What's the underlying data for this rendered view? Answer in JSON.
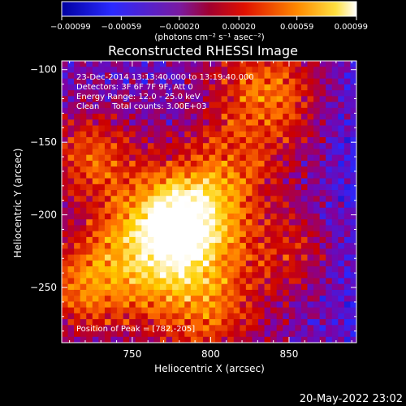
{
  "chart_data": {
    "type": "heatmap",
    "title": "Reconstructed RHESSI Image",
    "xlabel": "Heliocentric X (arcsec)",
    "ylabel": "Heliocentric Y (arcsec)",
    "xlim": [
      705,
      893
    ],
    "ylim": [
      -288,
      -94
    ],
    "x_ticks": [
      750,
      800,
      850
    ],
    "y_ticks": [
      -100,
      -150,
      -200,
      -250
    ],
    "x_tick_labels": [
      "750",
      "800",
      "850"
    ],
    "y_tick_labels": [
      "−100",
      "−150",
      "−200",
      "−250"
    ],
    "colorbar": {
      "range": [
        -0.00099,
        0.00099
      ],
      "ticks": [
        -0.00099,
        -0.00059,
        -0.0002,
        0.0002,
        0.00059,
        0.00099
      ],
      "tick_labels": [
        "−0.00099",
        "−0.00059",
        "−0.00020",
        "0.00020",
        "0.00059",
        "0.00099"
      ],
      "unit_label": "(photons cm⁻² s⁻¹ asec⁻²)"
    },
    "annotations": [
      "23-Dec-2014 13:13:40.000 to 13:19:40.000",
      "Detectors: 3F 6F 7F 9F, Att 0",
      "Energy Range: 12.0 - 25.0 keV",
      "Clean     Total counts: 3.00E+03"
    ],
    "peak_label": "Position of Peak = [782,-205]",
    "peak": [
      782,
      -205
    ],
    "colormap": [
      "#000090",
      "#2828ff",
      "#8000a0",
      "#cc0000",
      "#ff7000",
      "#ffd000",
      "#ffffff"
    ],
    "grid": false
  },
  "footer": {
    "timestamp": "20-May-2022 23:02"
  }
}
